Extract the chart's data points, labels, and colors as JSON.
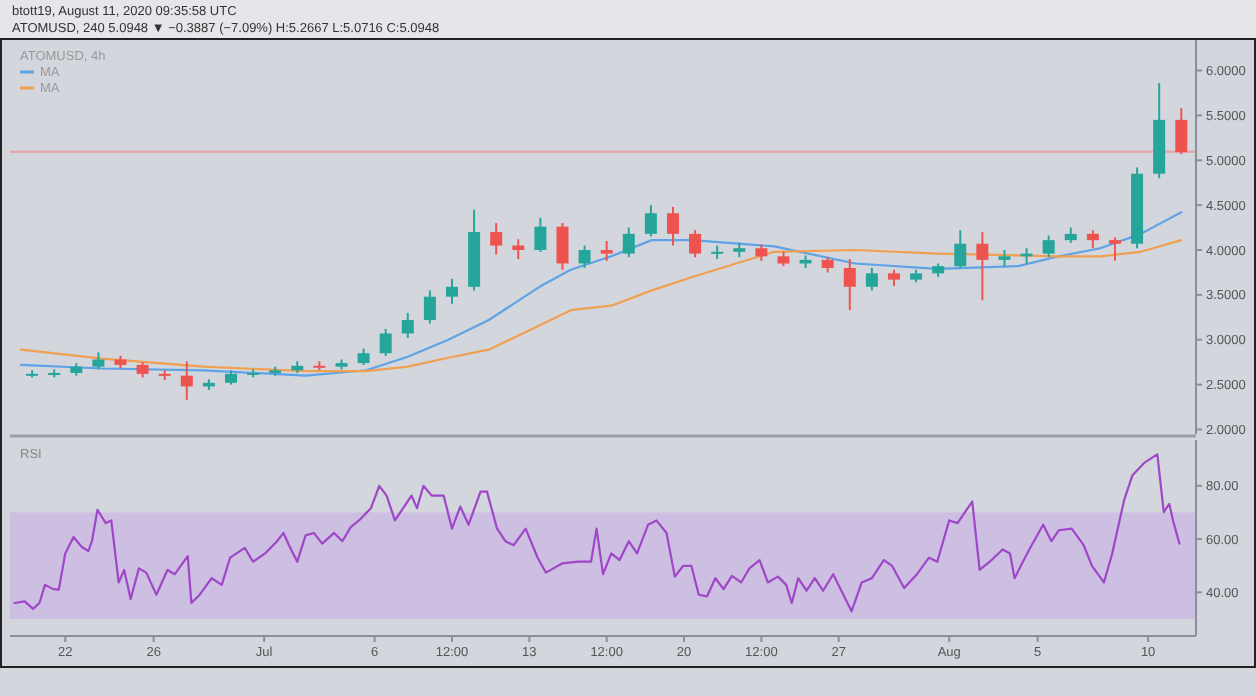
{
  "chart_data": [
    {
      "type": "candlestick",
      "title": "btott19, August 11, 2020 09:35:58 UTC",
      "subtitle": "ATOMUSD, 240  5.0948 ▼ −0.3887 (−7.09%)  H:5.2667  L:5.0716  C:5.0948",
      "annotations": [
        "ATOMUSD, 4h"
      ],
      "x": [
        "2020-06-20T12:00",
        "2020-06-21T12:00",
        "2020-06-22T12:00",
        "2020-06-23T12:00",
        "2020-06-24T12:00",
        "2020-06-25T12:00",
        "2020-06-26T12:00",
        "2020-06-27T12:00",
        "2020-06-28T12:00",
        "2020-06-29T12:00",
        "2020-06-30T12:00",
        "2020-07-01T12:00",
        "2020-07-02T12:00",
        "2020-07-03T12:00",
        "2020-07-04T12:00",
        "2020-07-05T12:00",
        "2020-07-06T12:00",
        "2020-07-07T12:00",
        "2020-07-08T12:00",
        "2020-07-09T12:00",
        "2020-07-10T12:00",
        "2020-07-11T12:00",
        "2020-07-12T12:00",
        "2020-07-13T12:00",
        "2020-07-14T12:00",
        "2020-07-15T12:00",
        "2020-07-16T12:00",
        "2020-07-17T12:00",
        "2020-07-18T12:00",
        "2020-07-19T12:00",
        "2020-07-20T12:00",
        "2020-07-21T12:00",
        "2020-07-22T12:00",
        "2020-07-23T12:00",
        "2020-07-24T12:00",
        "2020-07-25T12:00",
        "2020-07-26T12:00",
        "2020-07-27T12:00",
        "2020-07-28T12:00",
        "2020-07-29T12:00",
        "2020-07-30T12:00",
        "2020-07-31T12:00",
        "2020-08-01T12:00",
        "2020-08-02T12:00",
        "2020-08-03T12:00",
        "2020-08-04T12:00",
        "2020-08-05T12:00",
        "2020-08-06T12:00",
        "2020-08-07T12:00",
        "2020-08-08T12:00",
        "2020-08-09T12:00",
        "2020-08-10T12:00",
        "2020-08-11T12:00"
      ],
      "ohlc": [
        [
          2.61,
          2.66,
          2.58,
          2.62
        ],
        [
          2.62,
          2.67,
          2.58,
          2.63
        ],
        [
          2.63,
          2.74,
          2.6,
          2.7
        ],
        [
          2.7,
          2.86,
          2.67,
          2.78
        ],
        [
          2.78,
          2.82,
          2.68,
          2.72
        ],
        [
          2.72,
          2.75,
          2.58,
          2.62
        ],
        [
          2.62,
          2.66,
          2.55,
          2.6
        ],
        [
          2.6,
          2.76,
          2.33,
          2.48
        ],
        [
          2.48,
          2.56,
          2.44,
          2.52
        ],
        [
          2.52,
          2.66,
          2.5,
          2.62
        ],
        [
          2.62,
          2.67,
          2.58,
          2.63
        ],
        [
          2.63,
          2.7,
          2.6,
          2.66
        ],
        [
          2.66,
          2.76,
          2.63,
          2.71
        ],
        [
          2.71,
          2.76,
          2.66,
          2.7
        ],
        [
          2.7,
          2.78,
          2.67,
          2.74
        ],
        [
          2.74,
          2.9,
          2.72,
          2.85
        ],
        [
          2.85,
          3.12,
          2.82,
          3.07
        ],
        [
          3.07,
          3.3,
          3.02,
          3.22
        ],
        [
          3.22,
          3.55,
          3.18,
          3.48
        ],
        [
          3.48,
          3.68,
          3.4,
          3.59
        ],
        [
          3.59,
          4.45,
          3.55,
          4.2
        ],
        [
          4.2,
          4.3,
          3.95,
          4.05
        ],
        [
          4.05,
          4.12,
          3.9,
          4.0
        ],
        [
          4.0,
          4.36,
          3.98,
          4.26
        ],
        [
          4.26,
          4.3,
          3.78,
          3.85
        ],
        [
          3.85,
          4.05,
          3.8,
          4.0
        ],
        [
          4.0,
          4.1,
          3.88,
          3.96
        ],
        [
          3.96,
          4.25,
          3.92,
          4.18
        ],
        [
          4.18,
          4.5,
          4.15,
          4.41
        ],
        [
          4.41,
          4.48,
          4.05,
          4.18
        ],
        [
          4.18,
          4.22,
          3.92,
          3.96
        ],
        [
          3.96,
          4.05,
          3.9,
          3.98
        ],
        [
          3.98,
          4.08,
          3.92,
          4.02
        ],
        [
          4.02,
          4.06,
          3.88,
          3.93
        ],
        [
          3.93,
          3.98,
          3.82,
          3.85
        ],
        [
          3.85,
          3.94,
          3.8,
          3.89
        ],
        [
          3.89,
          3.92,
          3.75,
          3.8
        ],
        [
          3.8,
          3.9,
          3.33,
          3.59
        ],
        [
          3.59,
          3.8,
          3.55,
          3.74
        ],
        [
          3.74,
          3.78,
          3.6,
          3.67
        ],
        [
          3.67,
          3.78,
          3.64,
          3.74
        ],
        [
          3.74,
          3.85,
          3.7,
          3.82
        ],
        [
          3.82,
          4.22,
          3.8,
          4.07
        ],
        [
          4.07,
          4.2,
          3.44,
          3.89
        ],
        [
          3.89,
          4.0,
          3.82,
          3.93
        ],
        [
          3.93,
          4.02,
          3.85,
          3.96
        ],
        [
          3.96,
          4.16,
          3.92,
          4.11
        ],
        [
          4.11,
          4.25,
          4.08,
          4.18
        ],
        [
          4.18,
          4.22,
          4.02,
          4.11
        ],
        [
          4.11,
          4.14,
          3.88,
          4.07
        ],
        [
          4.07,
          4.92,
          4.02,
          4.85
        ],
        [
          4.85,
          5.86,
          4.8,
          5.45
        ],
        [
          5.45,
          5.58,
          5.07,
          5.09
        ]
      ],
      "series": [
        {
          "type": "line",
          "name": "MA",
          "color": "#5ea3e6",
          "x": [
            "2020-06-20T00:00",
            "2020-06-23T16:00",
            "2020-06-28T06:00",
            "2020-07-02T21:00",
            "2020-07-05T15:00",
            "2020-07-07T12:00",
            "2020-07-09T08:00",
            "2020-07-11T04:00",
            "2020-07-13T11:00",
            "2020-07-14T21:00",
            "2020-07-16T17:00",
            "2020-07-18T13:00",
            "2020-07-20T09:00",
            "2020-07-24T02:00",
            "2020-07-27T18:00",
            "2020-07-31T11:00",
            "2020-08-04T03:00",
            "2020-08-05T23:00",
            "2020-08-07T20:00",
            "2020-08-09T16:00",
            "2020-08-11T12:00"
          ],
          "values": [
            2.72,
            2.68,
            2.66,
            2.6,
            2.66,
            2.81,
            3.0,
            3.22,
            3.59,
            3.78,
            3.93,
            4.11,
            4.11,
            4.04,
            3.85,
            3.79,
            3.82,
            3.93,
            4.02,
            4.18,
            4.42
          ]
        },
        {
          "type": "line",
          "name": "MA",
          "color": "#f0a050",
          "x": [
            "2020-06-20T00:00",
            "2020-06-23T16:00",
            "2020-06-28T06:00",
            "2020-07-02T21:00",
            "2020-07-05T15:00",
            "2020-07-07T12:00",
            "2020-07-09T08:00",
            "2020-07-11T04:00",
            "2020-07-13T11:00",
            "2020-07-14T21:00",
            "2020-07-16T17:00",
            "2020-07-18T13:00",
            "2020-07-20T09:00",
            "2020-07-24T02:00",
            "2020-07-27T18:00",
            "2020-07-31T11:00",
            "2020-08-04T03:00",
            "2020-08-05T23:00",
            "2020-08-07T20:00",
            "2020-08-09T16:00",
            "2020-08-11T12:00"
          ],
          "values": [
            2.89,
            2.79,
            2.7,
            2.65,
            2.65,
            2.7,
            2.8,
            2.89,
            3.16,
            3.33,
            3.38,
            3.55,
            3.7,
            3.98,
            4.0,
            3.96,
            3.94,
            3.93,
            3.93,
            3.98,
            4.11
          ]
        }
      ],
      "ref_lines": [
        {
          "axis": "y",
          "value": 5.0948,
          "color": "#e8a0a0"
        }
      ],
      "xlim": [
        "2020-06-19T12:00",
        "2020-08-12T04:00"
      ],
      "ylim": [
        1.95,
        6.34
      ],
      "yticks": [
        {
          "value": 2,
          "label": "2.0000"
        },
        {
          "value": 2.5,
          "label": "2.5000"
        },
        {
          "value": 3,
          "label": "3.0000"
        },
        {
          "value": 3.5,
          "label": "3.5000"
        },
        {
          "value": 4,
          "label": "4.0000"
        },
        {
          "value": 4.5,
          "label": "4.5000"
        },
        {
          "value": 5,
          "label": "5.0000"
        },
        {
          "value": 5.5,
          "label": "5.5000"
        },
        {
          "value": 6,
          "label": "6.0000"
        }
      ],
      "tick_labels": "y",
      "legend": "top left"
    },
    {
      "type": "line",
      "title": "RSI",
      "series": [
        {
          "color": "#a046c8",
          "x": [
            "2020-06-19T17:00",
            "2020-06-20T04:00",
            "2020-06-20T13:00",
            "2020-06-20T20:00",
            "2020-06-21T02:00",
            "2020-06-21T11:00",
            "2020-06-21T17:00",
            "2020-06-22T00:00",
            "2020-06-22T09:00",
            "2020-06-22T18:00",
            "2020-06-23T01:00",
            "2020-06-23T05:00",
            "2020-06-23T11:00",
            "2020-06-23T20:00",
            "2020-06-24T02:00",
            "2020-06-24T10:00",
            "2020-06-24T16:00",
            "2020-06-24T23:00",
            "2020-06-25T08:00",
            "2020-06-25T16:00",
            "2020-06-26T03:00",
            "2020-06-26T15:00",
            "2020-06-26T23:00",
            "2020-06-27T13:00",
            "2020-06-27T17:00",
            "2020-06-28T02:00",
            "2020-06-28T15:00",
            "2020-06-29T02:00",
            "2020-06-29T11:00",
            "2020-06-30T03:00",
            "2020-06-30T12:00",
            "2020-07-01T01:00",
            "2020-07-01T14:00",
            "2020-07-01T21:00",
            "2020-07-02T03:00",
            "2020-07-02T12:00",
            "2020-07-02T21:00",
            "2020-07-03T06:00",
            "2020-07-03T15:00",
            "2020-07-04T04:00",
            "2020-07-04T13:00",
            "2020-07-04T22:00",
            "2020-07-05T07:00",
            "2020-07-05T20:00",
            "2020-07-06T05:00",
            "2020-07-06T13:00",
            "2020-07-06T22:00",
            "2020-07-07T07:00",
            "2020-07-07T16:00",
            "2020-07-07T22:00",
            "2020-07-08T05:00",
            "2020-07-08T14:00",
            "2020-07-09T03:00",
            "2020-07-09T12:00",
            "2020-07-09T21:00",
            "2020-07-10T06:00",
            "2020-07-10T19:00",
            "2020-07-11T02:00",
            "2020-07-11T13:00",
            "2020-07-11T22:00",
            "2020-07-12T07:00",
            "2020-07-12T20:00",
            "2020-07-13T09:00",
            "2020-07-13T18:00",
            "2020-07-14T12:00",
            "2020-07-15T05:00",
            "2020-07-15T19:00",
            "2020-07-16T01:00",
            "2020-07-16T08:00",
            "2020-07-16T17:00",
            "2020-07-17T02:00",
            "2020-07-17T12:00",
            "2020-07-17T21:00",
            "2020-07-18T09:00",
            "2020-07-18T18:00",
            "2020-07-19T05:00",
            "2020-07-19T14:00",
            "2020-07-19T23:00",
            "2020-07-20T08:00",
            "2020-07-20T16:00",
            "2020-07-21T01:00",
            "2020-07-21T10:00",
            "2020-07-21T19:00",
            "2020-07-22T04:00",
            "2020-07-22T14:00",
            "2020-07-22T23:00",
            "2020-07-23T10:00",
            "2020-07-23T19:00",
            "2020-07-24T06:00",
            "2020-07-24T15:00",
            "2020-07-24T21:00",
            "2020-07-25T04:00",
            "2020-07-25T13:00",
            "2020-07-25T22:00",
            "2020-07-26T07:00",
            "2020-07-26T18:00",
            "2020-07-27T05:00",
            "2020-07-27T14:00",
            "2020-07-28T01:00",
            "2020-07-28T12:00",
            "2020-07-29T01:00",
            "2020-07-29T10:00",
            "2020-07-29T23:00",
            "2020-07-30T13:00",
            "2020-07-31T02:00",
            "2020-07-31T11:00",
            "2020-08-01T00:00",
            "2020-08-01T09:00",
            "2020-08-02T01:00",
            "2020-08-02T09:00",
            "2020-08-02T20:00",
            "2020-08-03T10:00",
            "2020-08-03T18:00",
            "2020-08-03T23:00",
            "2020-08-04T08:00",
            "2020-08-04T16:00",
            "2020-08-05T06:00",
            "2020-08-05T15:00",
            "2020-08-05T23:00",
            "2020-08-06T13:00",
            "2020-08-07T02:00",
            "2020-08-07T11:00",
            "2020-08-08T00:00",
            "2020-08-08T09:00",
            "2020-08-08T22:00",
            "2020-08-09T07:00",
            "2020-08-09T20:00",
            "2020-08-10T10:00",
            "2020-08-10T17:00",
            "2020-08-10T23:00",
            "2020-08-11T03:00",
            "2020-08-11T10:00"
          ],
          "values": [
            36.0,
            36.6,
            33.8,
            36.0,
            42.8,
            41.2,
            41.0,
            54.6,
            60.8,
            57.0,
            55.5,
            59.2,
            71.0,
            66.0,
            67.0,
            43.7,
            48.4,
            37.5,
            49.0,
            47.4,
            39.1,
            48.4,
            46.8,
            53.6,
            36.0,
            39.1,
            45.3,
            42.8,
            53.0,
            56.7,
            51.5,
            54.6,
            59.2,
            62.3,
            57.7,
            51.5,
            61.4,
            62.3,
            58.3,
            62.3,
            59.2,
            64.5,
            67.0,
            71.6,
            80.0,
            76.3,
            67.0,
            71.6,
            76.3,
            71.6,
            80.0,
            76.3,
            76.3,
            63.9,
            72.2,
            65.4,
            77.8,
            77.8,
            63.9,
            59.2,
            57.7,
            63.9,
            53.0,
            47.4,
            50.9,
            51.5,
            51.5,
            63.9,
            46.8,
            54.6,
            52.1,
            59.2,
            54.6,
            65.4,
            67.0,
            62.3,
            45.9,
            49.9,
            49.9,
            39.1,
            38.5,
            45.3,
            41.2,
            46.2,
            43.7,
            49.0,
            52.1,
            43.7,
            45.9,
            42.8,
            36.0,
            45.3,
            40.6,
            45.3,
            40.6,
            46.8,
            39.1,
            32.9,
            43.7,
            45.3,
            52.1,
            49.9,
            41.6,
            46.8,
            53.0,
            51.5,
            67.0,
            66.0,
            74.1,
            48.4,
            51.5,
            56.1,
            54.6,
            45.3,
            51.5,
            56.7,
            65.4,
            59.2,
            63.3,
            63.9,
            57.7,
            49.9,
            43.7,
            54.6,
            74.7,
            84.0,
            88.7,
            91.8,
            70.1,
            73.2,
            67.0,
            58.3
          ]
        }
      ],
      "bands": [
        {
          "axis": "y",
          "from": 30,
          "to": 70,
          "color": "#cbbde2"
        }
      ],
      "xlim": [
        "2020-06-19T12:00",
        "2020-08-12T04:00"
      ],
      "ylim": [
        23.6,
        97.2
      ],
      "yticks": [
        {
          "value": 40,
          "label": "40.00"
        },
        {
          "value": 60,
          "label": "60.00"
        },
        {
          "value": 80,
          "label": "80.00"
        }
      ],
      "xticks": [
        {
          "value": "2020-06-22",
          "label": "22"
        },
        {
          "value": "2020-06-26",
          "label": "26"
        },
        {
          "value": "2020-07-01",
          "label": "Jul"
        },
        {
          "value": "2020-07-06",
          "label": "6"
        },
        {
          "value": "2020-07-09T12:00",
          "label": "12:00"
        },
        {
          "value": "2020-07-13",
          "label": "13"
        },
        {
          "value": "2020-07-16T12:00",
          "label": "12:00"
        },
        {
          "value": "2020-07-20",
          "label": "20"
        },
        {
          "value": "2020-07-23T12:00",
          "label": "12:00"
        },
        {
          "value": "2020-07-27",
          "label": "27"
        },
        {
          "value": "2020-08-01",
          "label": "Aug"
        },
        {
          "value": "2020-08-05",
          "label": "5"
        },
        {
          "value": "2020-08-10",
          "label": "10"
        }
      ]
    }
  ]
}
